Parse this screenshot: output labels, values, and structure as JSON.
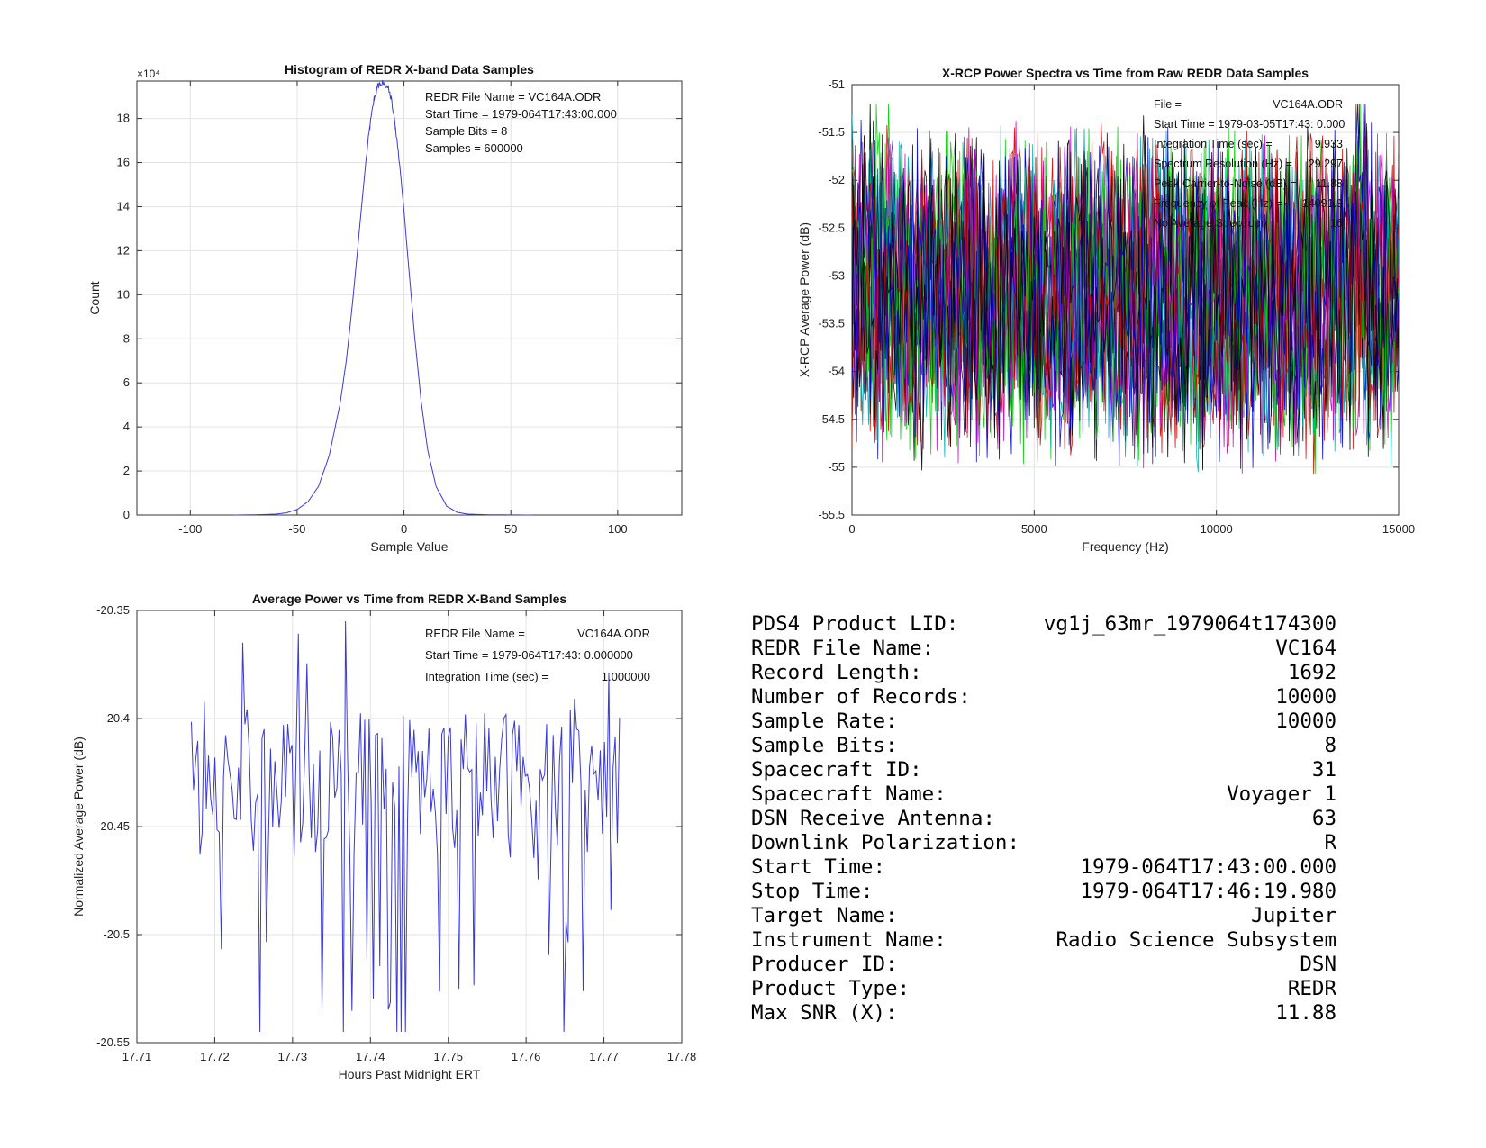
{
  "chart_data": [
    {
      "type": "line",
      "title": "Histogram of REDR X-band Data Samples",
      "xlabel": "Sample Value",
      "ylabel": "Count",
      "exponent_label": "×10⁴",
      "xlim": [
        -125,
        130
      ],
      "ylim": [
        0,
        19.7
      ],
      "xticks": [
        -100,
        -50,
        0,
        50,
        100
      ],
      "yticks": [
        0,
        2,
        4,
        6,
        8,
        10,
        12,
        14,
        16,
        18
      ],
      "grid": true,
      "color": "#3a3ad6",
      "annotations": [
        "REDR File Name = VC164A.ODR",
        "Start Time = 1979-064T17:43:00.000",
        "Sample Bits = 8",
        "Samples = 600000"
      ],
      "x": [
        -80,
        -70,
        -60,
        -55,
        -50,
        -45,
        -40,
        -35,
        -30,
        -27,
        -24,
        -21,
        -18,
        -16,
        -14,
        -12,
        -10,
        -8,
        -6,
        -4,
        -2,
        0,
        2,
        5,
        8,
        11,
        15,
        20,
        25,
        30,
        40,
        60
      ],
      "y": [
        0,
        0.01,
        0.04,
        0.1,
        0.25,
        0.6,
        1.3,
        2.7,
        5.0,
        7.0,
        9.7,
        12.8,
        15.9,
        17.6,
        18.9,
        19.5,
        19.6,
        19.5,
        18.9,
        17.6,
        15.9,
        13.8,
        11.5,
        8.1,
        5.2,
        3.0,
        1.3,
        0.4,
        0.12,
        0.04,
        0.01,
        0
      ]
    },
    {
      "type": "line",
      "title": "X-RCP Power Spectra vs Time from Raw REDR Data Samples",
      "xlabel": "Frequency (Hz)",
      "ylabel": "X-RCP Average Power (dB)",
      "xlim": [
        0,
        15000
      ],
      "ylim": [
        -55.5,
        -51
      ],
      "xticks": [
        0,
        5000,
        10000,
        15000
      ],
      "yticks": [
        -55.5,
        -55,
        -54.5,
        -54,
        -53.5,
        -53,
        -52.5,
        -52,
        -51.5,
        -51
      ],
      "grid": true,
      "series_colors": [
        "#00cc00",
        "#cc0000",
        "#0000cc",
        "#000000",
        "#00aaaa",
        "#bb00bb"
      ],
      "spectrum_mean_db": -53.2,
      "spectrum_range_db": [
        -55.45,
        -51.2
      ],
      "annotations": [
        {
          "label": "File =",
          "value": "VC164A.ODR"
        },
        {
          "label": "Start Time = 1979-03-05T17:43: 0.000",
          "value": ""
        },
        {
          "label": "Integration Time (sec) =",
          "value": "9.933"
        },
        {
          "label": "Spectrum Resolution (Hz) =",
          "value": "29.297"
        },
        {
          "label": "Peak Carrier-to-Noise (dB) =",
          "value": "11.88"
        },
        {
          "label": "Frequency of Peak (Hz) =",
          "value": "14091.9"
        },
        {
          "label": "No Average Spectrum",
          "value": "16"
        }
      ]
    },
    {
      "type": "line",
      "title": "Average Power vs Time from REDR X-Band Samples",
      "xlabel": "Hours Past Midnight ERT",
      "ylabel": "Normalized Average Power (dB)",
      "xlim": [
        17.71,
        17.78
      ],
      "ylim": [
        -20.55,
        -20.35
      ],
      "xticks": [
        17.71,
        17.72,
        17.73,
        17.74,
        17.75,
        17.76,
        17.77,
        17.78
      ],
      "yticks": [
        -20.55,
        -20.5,
        -20.45,
        -20.4,
        -20.35
      ],
      "grid": true,
      "color": "#3a3ad6",
      "x_range": [
        17.717,
        17.772
      ],
      "y_mean": -20.43,
      "y_range": [
        -20.545,
        -20.355
      ],
      "annotations": [
        {
          "label": "REDR File Name =",
          "value": "VC164A.ODR"
        },
        {
          "label": "Start Time = 1979-064T17:43: 0.000000",
          "value": ""
        },
        {
          "label": "Integration Time (sec) =",
          "value": "1.000000"
        }
      ]
    }
  ],
  "info": [
    {
      "label": "PDS4 Product LID:",
      "value": "vg1j_63mr_1979064t174300"
    },
    {
      "label": "REDR File Name:",
      "value": "VC164"
    },
    {
      "label": "Record Length:",
      "value": "1692"
    },
    {
      "label": "Number of Records:",
      "value": "10000"
    },
    {
      "label": "Sample Rate:",
      "value": "10000"
    },
    {
      "label": "Sample Bits:",
      "value": "8"
    },
    {
      "label": "Spacecraft ID:",
      "value": "31"
    },
    {
      "label": "Spacecraft Name:",
      "value": "Voyager 1"
    },
    {
      "label": "DSN Receive Antenna:",
      "value": "63"
    },
    {
      "label": "Downlink Polarization:",
      "value": "R"
    },
    {
      "label": "Start Time:",
      "value": "1979-064T17:43:00.000"
    },
    {
      "label": "Stop Time:",
      "value": "1979-064T17:46:19.980"
    },
    {
      "label": "Target Name:",
      "value": "Jupiter"
    },
    {
      "label": "Instrument Name:",
      "value": "Radio Science Subsystem"
    },
    {
      "label": "Producer ID:",
      "value": "DSN"
    },
    {
      "label": "Product Type:",
      "value": "REDR"
    },
    {
      "label": "Max SNR (X):",
      "value": "11.88"
    }
  ]
}
